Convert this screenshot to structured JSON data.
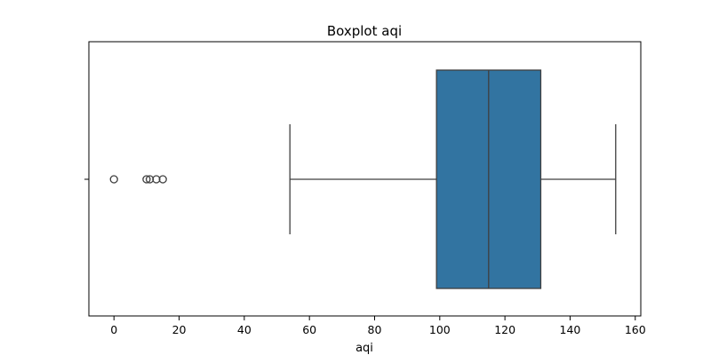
{
  "chart_data": {
    "type": "boxplot",
    "title": "Boxplot aqi",
    "xlabel": "aqi",
    "ylabel": "",
    "xlim": [
      -7.7,
      161.7
    ],
    "x_ticks": [
      0,
      20,
      40,
      60,
      80,
      100,
      120,
      140,
      160
    ],
    "x_tick_labels": [
      "0",
      "20",
      "40",
      "60",
      "80",
      "100",
      "120",
      "140",
      "160"
    ],
    "orientation": "horizontal",
    "grid": false,
    "box": {
      "whisker_low": 54,
      "q1": 99,
      "median": 115,
      "q3": 131,
      "whisker_high": 154,
      "outliers": [
        0,
        10,
        11,
        13,
        15
      ]
    },
    "colors": {
      "box_fill": "#3274a1",
      "line": "#3f3f3f",
      "axis": "#000000"
    }
  }
}
